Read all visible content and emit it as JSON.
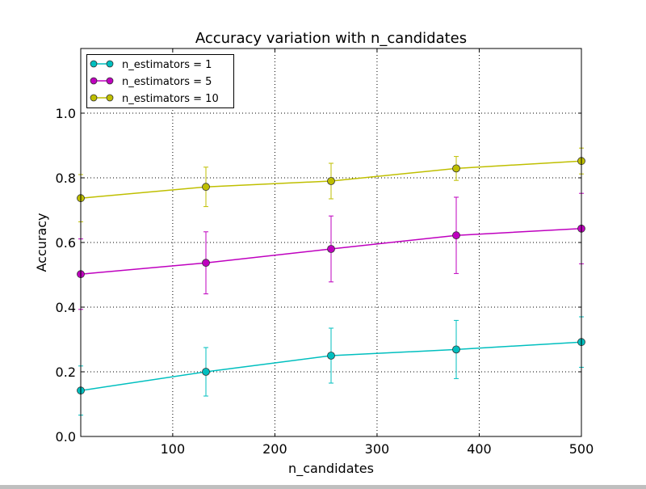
{
  "chart_data": {
    "type": "line",
    "title": "Accuracy variation with n_candidates",
    "xlabel": "n_candidates",
    "ylabel": "Accuracy",
    "xlim": [
      10,
      500
    ],
    "ylim": [
      0,
      1.2
    ],
    "xticks": [
      100,
      200,
      300,
      400,
      500
    ],
    "xtick_labels": [
      "100",
      "200",
      "300",
      "400",
      "500"
    ],
    "yticks": [
      0,
      0.2,
      0.4,
      0.6,
      0.8,
      1.0
    ],
    "ytick_labels": [
      "0.0",
      "0.2",
      "0.4",
      "0.6",
      "0.8",
      "1.0"
    ],
    "grid": true,
    "legend_position": "top-left",
    "x": [
      10,
      132.5,
      255,
      377.5,
      500
    ],
    "series": [
      {
        "name": "n_estimators = 1",
        "color": "#00bfbf",
        "values": [
          0.142,
          0.2,
          0.25,
          0.269,
          0.292
        ],
        "errors": [
          0.076,
          0.075,
          0.085,
          0.09,
          0.078
        ]
      },
      {
        "name": "n_estimators = 5",
        "color": "#bf00bf",
        "values": [
          0.502,
          0.537,
          0.58,
          0.622,
          0.643
        ],
        "errors": [
          0.109,
          0.096,
          0.102,
          0.118,
          0.109
        ]
      },
      {
        "name": "n_estimators = 10",
        "color": "#bfbf00",
        "values": [
          0.737,
          0.772,
          0.79,
          0.829,
          0.852
        ],
        "errors": [
          0.073,
          0.061,
          0.055,
          0.037,
          0.04
        ]
      }
    ]
  }
}
